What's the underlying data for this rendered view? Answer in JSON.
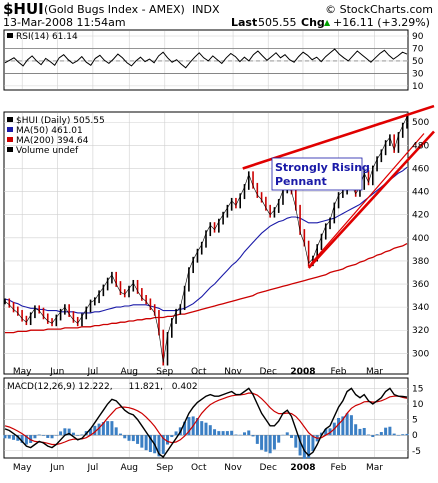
{
  "header": {
    "ticker": "$HUI",
    "name": "(Gold Bugs Index - AMEX)",
    "exchange": "INDX",
    "watermark": "© StockCharts.com",
    "datetime": "13-Mar-2008 11:54am",
    "last_label": "Last",
    "last_value": "505.55",
    "chg_label": "Chg",
    "chg_value": "+16.11 (+3.29%)",
    "chg_arrow": "▲"
  },
  "chart_data": [
    {
      "type": "line",
      "panel": "rsi",
      "legend": [
        {
          "label": "RSI(14) 61.14",
          "color": "#000000"
        }
      ],
      "y_ticks": [
        10,
        30,
        50,
        70,
        90
      ],
      "ylim": [
        5,
        98
      ],
      "reference_lines": [
        30,
        50,
        70
      ],
      "series": [
        {
          "name": "RSI(14)",
          "color": "#000000",
          "values": [
            47,
            51,
            55,
            48,
            42,
            52,
            58,
            50,
            44,
            54,
            49,
            43,
            55,
            60,
            52,
            46,
            50,
            57,
            48,
            43,
            54,
            59,
            51,
            46,
            53,
            61,
            55,
            47,
            42,
            50,
            56,
            49,
            53,
            47,
            58,
            64,
            55,
            48,
            52,
            45,
            39,
            48,
            56,
            63,
            55,
            50,
            58,
            52,
            46,
            55,
            62,
            57,
            49,
            56,
            50,
            60,
            66,
            58,
            51,
            57,
            63,
            55,
            60,
            52,
            48,
            57,
            64,
            59,
            52,
            56,
            49,
            57,
            63,
            69,
            61,
            55,
            50,
            58,
            66,
            60,
            54,
            48,
            55,
            62,
            67,
            59,
            53,
            58,
            64,
            61
          ]
        }
      ]
    },
    {
      "type": "line",
      "panel": "price",
      "legend": [
        {
          "label": "$HUI (Daily) 505.55",
          "color": "#000000"
        },
        {
          "label": "MA(50) 461.01",
          "color": "#1a1aa8"
        },
        {
          "label": "MA(200) 394.64",
          "color": "#cc0000"
        },
        {
          "label": "Volume undef",
          "color": "#000000"
        }
      ],
      "y_ticks": [
        300,
        320,
        340,
        360,
        380,
        400,
        420,
        440,
        460,
        480,
        500
      ],
      "ylim": [
        283,
        508
      ],
      "x_ticks": [
        {
          "label": "May",
          "t": 0.045,
          "bold": false
        },
        {
          "label": "Jun",
          "t": 0.132,
          "bold": false
        },
        {
          "label": "Jul",
          "t": 0.22,
          "bold": false
        },
        {
          "label": "Aug",
          "t": 0.31,
          "bold": false
        },
        {
          "label": "Sep",
          "t": 0.398,
          "bold": false
        },
        {
          "label": "Oct",
          "t": 0.482,
          "bold": false
        },
        {
          "label": "Nov",
          "t": 0.567,
          "bold": false
        },
        {
          "label": "Dec",
          "t": 0.654,
          "bold": false
        },
        {
          "label": "2008",
          "t": 0.74,
          "bold": true
        },
        {
          "label": "Feb",
          "t": 0.828,
          "bold": false
        },
        {
          "label": "Mar",
          "t": 0.917,
          "bold": false
        }
      ],
      "series": [
        {
          "name": "$HUI",
          "color": "#000000",
          "values": [
            345,
            342,
            338,
            335,
            330,
            327,
            333,
            339,
            337,
            332,
            328,
            326,
            331,
            336,
            340,
            334,
            329,
            326,
            332,
            338,
            344,
            346,
            352,
            357,
            363,
            368,
            360,
            353,
            351,
            356,
            361,
            354,
            348,
            345,
            340,
            335,
            318,
            292,
            316,
            328,
            336,
            340,
            356,
            372,
            381,
            388,
            394,
            404,
            411,
            407,
            414,
            420,
            426,
            432,
            428,
            436,
            444,
            455,
            445,
            437,
            433,
            426,
            420,
            424,
            431,
            441,
            447,
            440,
            426,
            405,
            395,
            378,
            382,
            392,
            401,
            410,
            415,
            428,
            437,
            440,
            452,
            446,
            438,
            444,
            456,
            448,
            460,
            468,
            474,
            482,
            487,
            476,
            489,
            497,
            505
          ]
        },
        {
          "name": "MA(50)",
          "color": "#1a1aa8",
          "values": [
            347,
            346,
            344,
            343,
            341,
            340,
            339,
            339,
            338,
            338,
            337,
            337,
            337,
            336,
            336,
            336,
            336,
            335,
            335,
            335,
            335,
            336,
            336,
            337,
            338,
            339,
            340,
            340,
            341,
            341,
            342,
            342,
            342,
            342,
            341,
            340,
            339,
            337,
            337,
            337,
            337,
            338,
            339,
            341,
            343,
            346,
            349,
            353,
            357,
            360,
            364,
            368,
            372,
            376,
            379,
            383,
            388,
            392,
            396,
            400,
            404,
            407,
            410,
            412,
            414,
            415,
            417,
            418,
            418,
            417,
            415,
            413,
            413,
            413,
            414,
            415,
            416,
            417,
            419,
            421,
            423,
            425,
            427,
            429,
            432,
            435,
            438,
            441,
            444,
            447,
            450,
            453,
            456,
            458,
            461
          ]
        },
        {
          "name": "MA(200)",
          "color": "#cc0000",
          "values": [
            318,
            318,
            318,
            319,
            319,
            319,
            320,
            320,
            320,
            320,
            321,
            321,
            321,
            321,
            322,
            322,
            322,
            322,
            323,
            323,
            323,
            324,
            324,
            325,
            325,
            326,
            326,
            327,
            327,
            328,
            328,
            329,
            329,
            330,
            330,
            331,
            331,
            331,
            332,
            332,
            333,
            334,
            334,
            335,
            336,
            337,
            338,
            339,
            340,
            341,
            342,
            343,
            344,
            345,
            346,
            347,
            348,
            349,
            350,
            352,
            353,
            354,
            355,
            356,
            357,
            358,
            359,
            360,
            361,
            362,
            363,
            364,
            365,
            366,
            367,
            368,
            370,
            371,
            372,
            373,
            375,
            376,
            377,
            379,
            380,
            382,
            383,
            385,
            386,
            388,
            389,
            391,
            392,
            393,
            395
          ]
        }
      ],
      "annotation": {
        "lines": [
          "Strongly Rising",
          "Pennant"
        ],
        "color": "#1a1aa8"
      }
    },
    {
      "type": "line",
      "panel": "macd",
      "legend": [
        {
          "label": "MACD(12,26,9) 12.222,",
          "color": "#000000"
        },
        {
          "label": "11.821,",
          "color": "#cc0000"
        },
        {
          "label": "0.402",
          "color": "#3399cc"
        }
      ],
      "y_ticks": [
        -5,
        0,
        5,
        10,
        15
      ],
      "ylim": [
        -7,
        18
      ],
      "series": [
        {
          "name": "MACD",
          "color": "#000000",
          "values": [
            2,
            1.5,
            0.5,
            -0.5,
            -2,
            -3.5,
            -4,
            -3,
            -2,
            -2.5,
            -3.5,
            -4,
            -3,
            -1.5,
            0,
            0.5,
            -0.5,
            -1.5,
            -1,
            0.5,
            2,
            4,
            6,
            8,
            10,
            11.5,
            11,
            9.5,
            8,
            7,
            6.5,
            5,
            3,
            1,
            -1,
            -3,
            -6,
            -7,
            -5,
            -3,
            -1,
            1,
            4,
            7,
            9,
            10.5,
            11.5,
            12.5,
            13,
            12.5,
            12.5,
            13,
            13.5,
            14,
            13,
            13,
            14,
            15,
            13,
            10,
            7,
            5,
            3,
            3,
            4.5,
            7,
            8,
            6,
            2,
            -2,
            -5,
            -6.5,
            -5.5,
            -3,
            0,
            2,
            3,
            6,
            9,
            11,
            14,
            15,
            13,
            12,
            13,
            11,
            10,
            11,
            12,
            14,
            15,
            13,
            12.5,
            12.4,
            12.2
          ]
        },
        {
          "name": "Signal",
          "color": "#cc0000",
          "values": [
            3,
            2.6,
            2,
            1.3,
            0.5,
            -0.5,
            -1.5,
            -2,
            -2.2,
            -2.3,
            -2.6,
            -3,
            -3,
            -2.7,
            -2.2,
            -1.6,
            -1.3,
            -1.3,
            -1.2,
            -0.8,
            0,
            1,
            2.3,
            3.8,
            5.5,
            7,
            8.5,
            9,
            9,
            8.8,
            8.4,
            7.8,
            7,
            5.8,
            4.4,
            2.8,
            0.8,
            -1,
            -2,
            -2.4,
            -2.2,
            -1.5,
            -0.3,
            1.2,
            3,
            5,
            7,
            8.5,
            9.8,
            10.6,
            11.2,
            11.7,
            12.2,
            12.6,
            12.8,
            12.9,
            13.1,
            13.5,
            13.4,
            12.8,
            11.7,
            10.3,
            8.8,
            7.6,
            6.9,
            6.9,
            7.1,
            6.9,
            6,
            4.5,
            2.6,
            0.8,
            -0.4,
            -1,
            -0.8,
            0,
            0.8,
            2,
            3.5,
            5,
            7,
            8.6,
            9.5,
            10,
            10.7,
            10.8,
            10.6,
            10.7,
            11,
            11.6,
            12.3,
            12.5,
            12.5,
            12.1,
            11.8
          ]
        }
      ]
    }
  ]
}
